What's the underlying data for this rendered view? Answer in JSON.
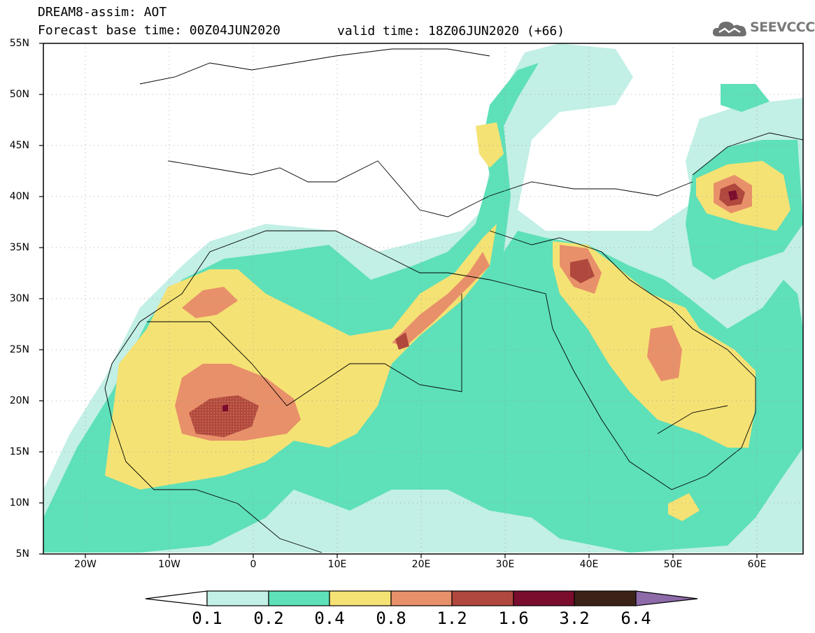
{
  "header": {
    "title": "DREAM8-assim: AOT",
    "base_time": "Forecast base time: 00Z04JUN2020",
    "valid_time": "valid time: 18Z06JUN2020 (+66)"
  },
  "logo": {
    "text": "SEEVCCC",
    "icon": "cloud-icon"
  },
  "axes": {
    "lat_labels": [
      "55N",
      "50N",
      "45N",
      "40N",
      "35N",
      "30N",
      "25N",
      "20N",
      "15N",
      "10N",
      "5N"
    ],
    "lon_labels": [
      "20W",
      "10W",
      "0",
      "10E",
      "20E",
      "30E",
      "40E",
      "50E",
      "60E"
    ],
    "lon_range": [
      -25,
      65
    ],
    "lat_range": [
      5,
      55
    ],
    "grid": "dotted"
  },
  "colorbar": {
    "labels": [
      "0.1",
      "0.2",
      "0.4",
      "0.8",
      "1.2",
      "1.6",
      "3.2",
      "6.4"
    ],
    "colors": [
      "#ffffff",
      "#c2efe6",
      "#5ee0b8",
      "#f5e274",
      "#e8906a",
      "#b0483e",
      "#7a0c2e",
      "#3c2318",
      "#8d6aa8"
    ]
  }
}
